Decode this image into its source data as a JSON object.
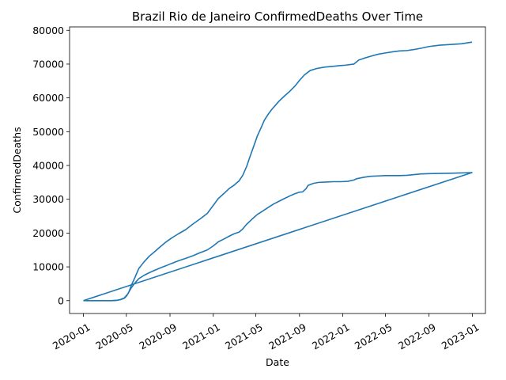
{
  "chart_data": {
    "type": "line",
    "title": "Brazil Rio de Janeiro ConfirmedDeaths Over Time",
    "xlabel": "Date",
    "ylabel": "ConfirmedDeaths",
    "xlim": [
      "2019-11-23",
      "2023-02-07"
    ],
    "ylim": [
      -3800,
      81000
    ],
    "grid": false,
    "legend": "none",
    "color": "#1f77b4",
    "x_ticks": [
      "2020-01",
      "2020-05",
      "2020-09",
      "2021-01",
      "2021-05",
      "2021-09",
      "2022-01",
      "2022-05",
      "2022-09",
      "2023-01"
    ],
    "y_ticks": [
      "0",
      "10000",
      "20000",
      "30000",
      "40000",
      "50000",
      "60000",
      "70000",
      "80000"
    ],
    "series": [
      {
        "name": "",
        "x": [
          "2020-01-01",
          "2020-03-20",
          "2020-04-05",
          "2020-04-15",
          "2020-04-25",
          "2020-05-05",
          "2020-05-15",
          "2020-05-25",
          "2020-06-05",
          "2020-06-20",
          "2020-07-05",
          "2020-07-20",
          "2020-08-05",
          "2020-08-20",
          "2020-09-05",
          "2020-09-25",
          "2020-10-15",
          "2020-11-05",
          "2020-11-25",
          "2020-12-15",
          "2021-01-01",
          "2021-01-15",
          "2021-02-01",
          "2021-02-15",
          "2021-03-01",
          "2021-03-15",
          "2021-03-25",
          "2021-04-05",
          "2021-04-20",
          "2021-05-05",
          "2021-05-20",
          "2021-06-05",
          "2021-06-20",
          "2021-07-05",
          "2021-07-20",
          "2021-08-05",
          "2021-08-20",
          "2021-09-01",
          "2021-09-10",
          "2021-09-20",
          "2021-09-25",
          "2021-10-10",
          "2021-10-25",
          "2021-11-15",
          "2021-12-05",
          "2021-12-25",
          "2022-01-15",
          "2022-02-01",
          "2022-02-10",
          "2022-03-01",
          "2022-03-20",
          "2022-04-10",
          "2022-05-01",
          "2022-05-20",
          "2022-06-10",
          "2022-07-01",
          "2022-07-20",
          "2022-08-10",
          "2022-09-01",
          "2022-10-01",
          "2022-11-01",
          "2022-12-01",
          "2022-12-31",
          "2020-01-01"
        ],
        "y": [
          0,
          0,
          100,
          350,
          800,
          2000,
          3800,
          5200,
          6500,
          7500,
          8300,
          9000,
          9700,
          10300,
          11000,
          11800,
          12500,
          13300,
          14200,
          15000,
          16200,
          17400,
          18300,
          19100,
          19800,
          20300,
          21200,
          22600,
          24100,
          25500,
          26500,
          27600,
          28600,
          29400,
          30200,
          31000,
          31700,
          32100,
          32200,
          33200,
          34100,
          34700,
          35000,
          35100,
          35200,
          35200,
          35300,
          35700,
          36100,
          36500,
          36800,
          36900,
          37000,
          37000,
          37000,
          37100,
          37300,
          37500,
          37600,
          37650,
          37700,
          37800,
          37900,
          0
        ]
      },
      {
        "name": "",
        "x": [
          "2020-03-20",
          "2020-04-05",
          "2020-04-15",
          "2020-04-25",
          "2020-05-01",
          "2020-05-08",
          "2020-05-15",
          "2020-05-25",
          "2020-06-05",
          "2020-06-20",
          "2020-07-05",
          "2020-07-20",
          "2020-08-05",
          "2020-08-20",
          "2020-09-05",
          "2020-09-25",
          "2020-10-15",
          "2020-11-05",
          "2020-11-25",
          "2020-12-15",
          "2021-01-01",
          "2021-01-15",
          "2021-02-01",
          "2021-02-15",
          "2021-03-01",
          "2021-03-15",
          "2021-03-25",
          "2021-04-05",
          "2021-04-15",
          "2021-04-25",
          "2021-05-05",
          "2021-05-15",
          "2021-05-25",
          "2021-06-05",
          "2021-06-15",
          "2021-06-25",
          "2021-07-05",
          "2021-07-20",
          "2021-08-05",
          "2021-08-20",
          "2021-09-01",
          "2021-09-15",
          "2021-10-01",
          "2021-10-20",
          "2021-11-10",
          "2021-12-01",
          "2021-12-20",
          "2022-01-10",
          "2022-02-01",
          "2022-02-15",
          "2022-03-01",
          "2022-03-20",
          "2022-04-10",
          "2022-05-01",
          "2022-05-20",
          "2022-06-10",
          "2022-07-01",
          "2022-07-20",
          "2022-08-10",
          "2022-09-01",
          "2022-10-01",
          "2022-11-01",
          "2022-12-01",
          "2022-12-31"
        ],
        "y": [
          0,
          100,
          300,
          700,
          1300,
          2500,
          4500,
          6800,
          9500,
          11500,
          13200,
          14500,
          16000,
          17300,
          18500,
          19800,
          21000,
          22700,
          24200,
          25800,
          28200,
          30200,
          31800,
          33200,
          34200,
          35500,
          37100,
          39700,
          42800,
          45700,
          48700,
          51000,
          53400,
          55200,
          56600,
          57800,
          59000,
          60500,
          62000,
          63600,
          65200,
          66800,
          68100,
          68700,
          69100,
          69300,
          69500,
          69700,
          70000,
          71200,
          71700,
          72300,
          72900,
          73300,
          73600,
          73900,
          74000,
          74300,
          74700,
          75200,
          75600,
          75800,
          76000,
          76500
        ]
      }
    ]
  }
}
